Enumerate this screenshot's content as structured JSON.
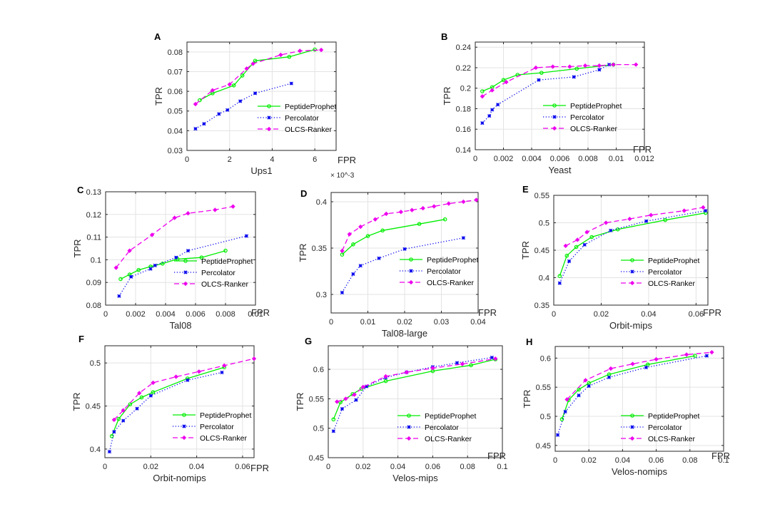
{
  "chart_data": [
    {
      "type": "line",
      "panel": "A",
      "xlabel": "Ups1",
      "ylabel": "TPR",
      "x_axis_text": "FPR",
      "xlim": [
        0,
        0.007
      ],
      "ylim": [
        0.03,
        0.085
      ],
      "xticks": [
        0,
        0.002,
        0.004,
        0.006
      ],
      "xtick_labels": [
        "0",
        "2",
        "4",
        "6"
      ],
      "x_exponent": "× 10^-3",
      "yticks": [
        0.03,
        0.04,
        0.05,
        0.06,
        0.07,
        0.08
      ],
      "ytick_labels": [
        "0.03",
        "0.04",
        "0.05",
        "0.06",
        "0.07",
        "0.08"
      ],
      "series": [
        {
          "name": "PeptideProphet",
          "x": [
            0.0006,
            0.0012,
            0.0022,
            0.0026,
            0.0032,
            0.0048,
            0.006
          ],
          "y": [
            0.0555,
            0.059,
            0.063,
            0.068,
            0.0755,
            0.0775,
            0.0812
          ]
        },
        {
          "name": "Percolator",
          "x": [
            0.0004,
            0.0008,
            0.0015,
            0.0019,
            0.0025,
            0.0032,
            0.0049
          ],
          "y": [
            0.041,
            0.0435,
            0.0485,
            0.0505,
            0.055,
            0.059,
            0.064
          ]
        },
        {
          "name": "OLCS-Ranker",
          "x": [
            0.0004,
            0.0012,
            0.002,
            0.0028,
            0.0031,
            0.0044,
            0.0053,
            0.0063
          ],
          "y": [
            0.0535,
            0.0605,
            0.0635,
            0.0715,
            0.074,
            0.0785,
            0.0805,
            0.081
          ]
        }
      ]
    },
    {
      "type": "line",
      "panel": "B",
      "xlabel": "Yeast",
      "ylabel": "TPR",
      "x_axis_text": "FPR",
      "xlim": [
        0,
        0.012
      ],
      "ylim": [
        0.14,
        0.245
      ],
      "xticks": [
        0,
        0.002,
        0.004,
        0.006,
        0.008,
        0.01,
        0.012
      ],
      "xtick_labels": [
        "0",
        "0.002",
        "0.004",
        "0.006",
        "0.008",
        "0.01",
        "0.012"
      ],
      "yticks": [
        0.14,
        0.16,
        0.18,
        0.2,
        0.22,
        0.24
      ],
      "ytick_labels": [
        "0.14",
        "0.16",
        "0.18",
        "0.2",
        "0.22",
        "0.24"
      ],
      "series": [
        {
          "name": "PeptideProphet",
          "x": [
            0.0005,
            0.0012,
            0.002,
            0.003,
            0.0047,
            0.0072,
            0.0098
          ],
          "y": [
            0.197,
            0.201,
            0.208,
            0.213,
            0.215,
            0.219,
            0.223
          ]
        },
        {
          "name": "Percolator",
          "x": [
            0.0005,
            0.001,
            0.0012,
            0.0016,
            0.0045,
            0.007,
            0.0088,
            0.0095
          ],
          "y": [
            0.166,
            0.173,
            0.179,
            0.184,
            0.208,
            0.211,
            0.218,
            0.223
          ]
        },
        {
          "name": "OLCS-Ranker",
          "x": [
            0.0005,
            0.0012,
            0.0022,
            0.0043,
            0.0055,
            0.0067,
            0.0078,
            0.0088,
            0.0098,
            0.0114
          ],
          "y": [
            0.192,
            0.198,
            0.206,
            0.22,
            0.221,
            0.221,
            0.222,
            0.222,
            0.223,
            0.223
          ]
        }
      ]
    },
    {
      "type": "line",
      "panel": "C",
      "xlabel": "Tal08",
      "ylabel": "TPR",
      "x_axis_text": "FPR",
      "xlim": [
        0,
        0.01
      ],
      "ylim": [
        0.08,
        0.13
      ],
      "xticks": [
        0,
        0.002,
        0.004,
        0.006,
        0.008,
        0.01
      ],
      "xtick_labels": [
        "0",
        "0.002",
        "0.004",
        "0.006",
        "0.008",
        "0.01"
      ],
      "yticks": [
        0.08,
        0.09,
        0.1,
        0.11,
        0.12,
        0.13
      ],
      "ytick_labels": [
        "0.08",
        "0.09",
        "0.1",
        "0.11",
        "0.12",
        "0.13"
      ],
      "series": [
        {
          "name": "PeptideProphet",
          "x": [
            0.001,
            0.0016,
            0.0022,
            0.003,
            0.0038,
            0.0048,
            0.0064,
            0.008
          ],
          "y": [
            0.0915,
            0.0935,
            0.0955,
            0.097,
            0.0983,
            0.1003,
            0.101,
            0.104
          ]
        },
        {
          "name": "Percolator",
          "x": [
            0.0009,
            0.0017,
            0.003,
            0.0033,
            0.0047,
            0.0055,
            0.0094
          ],
          "y": [
            0.084,
            0.0925,
            0.096,
            0.0975,
            0.101,
            0.104,
            0.1105
          ]
        },
        {
          "name": "OLCS-Ranker",
          "x": [
            0.0007,
            0.0016,
            0.0031,
            0.0046,
            0.0055,
            0.0073,
            0.0085
          ],
          "y": [
            0.0965,
            0.104,
            0.111,
            0.1185,
            0.1205,
            0.122,
            0.1235
          ]
        }
      ]
    },
    {
      "type": "line",
      "panel": "D",
      "xlabel": "Tal08-large",
      "ylabel": "TPR",
      "x_axis_text": "FPR",
      "xlim": [
        0,
        0.04
      ],
      "ylim": [
        0.28,
        0.41
      ],
      "xticks": [
        0,
        0.01,
        0.02,
        0.03,
        0.04
      ],
      "xtick_labels": [
        "0",
        "0.01",
        "0.02",
        "0.03",
        "0.04"
      ],
      "yticks": [
        0.3,
        0.35,
        0.4
      ],
      "ytick_labels": [
        "0.3",
        "0.35",
        "0.4"
      ],
      "series": [
        {
          "name": "PeptideProphet",
          "x": [
            0.003,
            0.006,
            0.01,
            0.014,
            0.024,
            0.031
          ],
          "y": [
            0.343,
            0.354,
            0.363,
            0.369,
            0.376,
            0.381
          ]
        },
        {
          "name": "Percolator",
          "x": [
            0.003,
            0.006,
            0.008,
            0.013,
            0.02,
            0.036
          ],
          "y": [
            0.302,
            0.322,
            0.331,
            0.339,
            0.349,
            0.361
          ]
        },
        {
          "name": "OLCS-Ranker",
          "x": [
            0.003,
            0.005,
            0.008,
            0.012,
            0.015,
            0.019,
            0.022,
            0.025,
            0.028,
            0.032,
            0.036,
            0.0395
          ],
          "y": [
            0.347,
            0.365,
            0.373,
            0.381,
            0.387,
            0.389,
            0.391,
            0.393,
            0.395,
            0.398,
            0.4,
            0.402
          ]
        }
      ]
    },
    {
      "type": "line",
      "panel": "E",
      "xlabel": "Orbit-mips",
      "ylabel": "TPR",
      "x_axis_text": "FPR",
      "xlim": [
        0,
        0.065
      ],
      "ylim": [
        0.35,
        0.55
      ],
      "xticks": [
        0,
        0.02,
        0.04,
        0.06
      ],
      "xtick_labels": [
        "0",
        "0.02",
        "0.04",
        "0.06"
      ],
      "yticks": [
        0.35,
        0.4,
        0.45,
        0.5,
        0.55
      ],
      "ytick_labels": [
        "0.35",
        "0.4",
        "0.45",
        "0.5",
        "0.55"
      ],
      "series": [
        {
          "name": "PeptideProphet",
          "x": [
            0.0025,
            0.0055,
            0.0095,
            0.016,
            0.027,
            0.047,
            0.064
          ],
          "y": [
            0.403,
            0.44,
            0.456,
            0.474,
            0.488,
            0.505,
            0.518
          ]
        },
        {
          "name": "Percolator",
          "x": [
            0.0025,
            0.0065,
            0.013,
            0.024,
            0.039,
            0.064
          ],
          "y": [
            0.39,
            0.43,
            0.46,
            0.486,
            0.503,
            0.522
          ]
        },
        {
          "name": "OLCS-Ranker",
          "x": [
            0.005,
            0.01,
            0.014,
            0.022,
            0.032,
            0.041,
            0.055,
            0.063
          ],
          "y": [
            0.458,
            0.469,
            0.483,
            0.5,
            0.507,
            0.514,
            0.522,
            0.528
          ]
        }
      ]
    },
    {
      "type": "line",
      "panel": "F",
      "xlabel": "Orbit-nomips",
      "ylabel": "TPR",
      "x_axis_text": "FPR",
      "xlim": [
        0,
        0.065
      ],
      "ylim": [
        0.39,
        0.52
      ],
      "xticks": [
        0,
        0.02,
        0.04,
        0.06
      ],
      "xtick_labels": [
        "0",
        "0.02",
        "0.04",
        "0.06"
      ],
      "yticks": [
        0.4,
        0.45,
        0.5
      ],
      "ytick_labels": [
        "0.4",
        "0.45",
        "0.5"
      ],
      "series": [
        {
          "name": "PeptideProphet",
          "x": [
            0.003,
            0.006,
            0.011,
            0.016,
            0.021,
            0.036,
            0.052
          ],
          "y": [
            0.415,
            0.435,
            0.452,
            0.46,
            0.466,
            0.482,
            0.495
          ]
        },
        {
          "name": "Percolator",
          "x": [
            0.002,
            0.004,
            0.008,
            0.014,
            0.02,
            0.036,
            0.051
          ],
          "y": [
            0.397,
            0.42,
            0.433,
            0.447,
            0.462,
            0.48,
            0.489
          ]
        },
        {
          "name": "OLCS-Ranker",
          "x": [
            0.004,
            0.008,
            0.015,
            0.021,
            0.031,
            0.041,
            0.052,
            0.065
          ],
          "y": [
            0.434,
            0.445,
            0.465,
            0.477,
            0.484,
            0.49,
            0.497,
            0.505
          ]
        }
      ]
    },
    {
      "type": "line",
      "panel": "G",
      "xlabel": "Velos-mips",
      "ylabel": "TPR",
      "x_axis_text": "FPR",
      "xlim": [
        0,
        0.1
      ],
      "ylim": [
        0.45,
        0.64
      ],
      "xticks": [
        0,
        0.02,
        0.04,
        0.06,
        0.08,
        0.1
      ],
      "xtick_labels": [
        "0",
        "0.02",
        "0.04",
        "0.06",
        "0.08",
        "0.1"
      ],
      "yticks": [
        0.45,
        0.5,
        0.55,
        0.6
      ],
      "ytick_labels": [
        "0.45",
        "0.5",
        "0.55",
        "0.6"
      ],
      "series": [
        {
          "name": "PeptideProphet",
          "x": [
            0.003,
            0.007,
            0.014,
            0.019,
            0.033,
            0.06,
            0.082,
            0.096
          ],
          "y": [
            0.515,
            0.544,
            0.558,
            0.567,
            0.58,
            0.597,
            0.607,
            0.617
          ]
        },
        {
          "name": "Percolator",
          "x": [
            0.003,
            0.008,
            0.016,
            0.022,
            0.033,
            0.045,
            0.06,
            0.074,
            0.094
          ],
          "y": [
            0.495,
            0.533,
            0.548,
            0.571,
            0.586,
            0.595,
            0.604,
            0.611,
            0.62
          ]
        },
        {
          "name": "OLCS-Ranker",
          "x": [
            0.005,
            0.01,
            0.015,
            0.02,
            0.033,
            0.045,
            0.06,
            0.077,
            0.096
          ],
          "y": [
            0.545,
            0.55,
            0.557,
            0.57,
            0.588,
            0.595,
            0.602,
            0.609,
            0.618
          ]
        }
      ]
    },
    {
      "type": "line",
      "panel": "H",
      "xlabel": "Velos-nomips",
      "ylabel": "TPR",
      "x_axis_text": "FPR",
      "xlim": [
        0,
        0.1
      ],
      "ylim": [
        0.44,
        0.62
      ],
      "xticks": [
        0,
        0.02,
        0.04,
        0.06,
        0.08,
        0.1
      ],
      "xtick_labels": [
        "0",
        "0.02",
        "0.04",
        "0.06",
        "0.08",
        "0.1"
      ],
      "yticks": [
        0.45,
        0.5,
        0.55,
        0.6
      ],
      "ytick_labels": [
        "0.45",
        "0.5",
        "0.55",
        "0.6"
      ],
      "series": [
        {
          "name": "PeptideProphet",
          "x": [
            0.004,
            0.008,
            0.014,
            0.02,
            0.032,
            0.055,
            0.083
          ],
          "y": [
            0.495,
            0.528,
            0.546,
            0.557,
            0.572,
            0.589,
            0.604
          ]
        },
        {
          "name": "Percolator",
          "x": [
            0.0015,
            0.006,
            0.014,
            0.02,
            0.032,
            0.054,
            0.09
          ],
          "y": [
            0.468,
            0.508,
            0.536,
            0.552,
            0.567,
            0.584,
            0.604
          ]
        },
        {
          "name": "OLCS-Ranker",
          "x": [
            0.007,
            0.018,
            0.033,
            0.046,
            0.06,
            0.078,
            0.093
          ],
          "y": [
            0.529,
            0.562,
            0.582,
            0.59,
            0.598,
            0.606,
            0.61
          ]
        }
      ]
    }
  ],
  "colors": {
    "PeptideProphet": "#00ee00",
    "Percolator": "#0000ee",
    "OLCS-Ranker": "#ee00ee",
    "grid": "#e3e3e3",
    "axis": "#262626"
  }
}
